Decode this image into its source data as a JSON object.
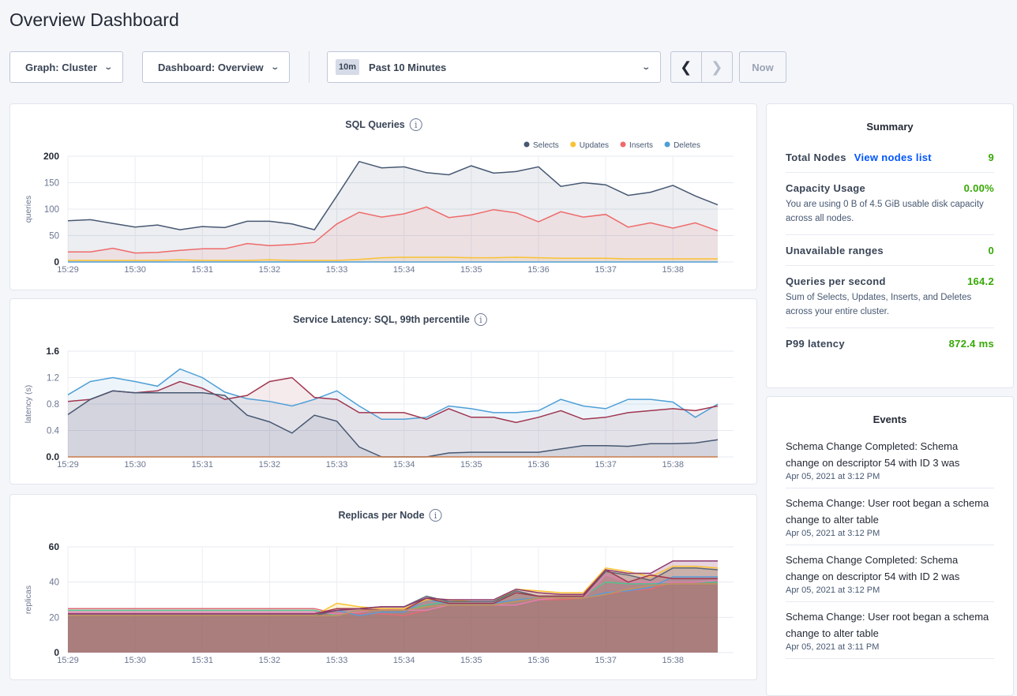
{
  "page": {
    "title": "Overview Dashboard"
  },
  "controls": {
    "graph": "Graph: Cluster",
    "dashboard": "Dashboard: Overview",
    "time_badge": "10m",
    "time_range": "Past 10 Minutes",
    "prev_icon": "chevron-left-icon",
    "next_icon": "chevron-right-icon",
    "now": "Now"
  },
  "summary": {
    "title": "Summary",
    "total_nodes": {
      "label": "Total Nodes",
      "link": "View nodes list",
      "value": "9"
    },
    "capacity": {
      "label": "Capacity Usage",
      "value": "0.00%",
      "desc": "You are using 0 B of 4.5 GiB usable disk capacity across all nodes."
    },
    "unavailable": {
      "label": "Unavailable ranges",
      "value": "0"
    },
    "qps": {
      "label": "Queries per second",
      "value": "164.2",
      "desc": "Sum of Selects, Updates, Inserts, and Deletes across your entire cluster."
    },
    "p99": {
      "label": "P99 latency",
      "value": "872.4 ms"
    },
    "value_color": "#37a806"
  },
  "events": {
    "title": "Events",
    "items": [
      {
        "text": "Schema Change Completed: Schema change on descriptor 54 with ID 3 was",
        "date": "Apr 05, 2021 at 3:12 PM"
      },
      {
        "text": "Schema Change: User root began a schema change to alter table",
        "date": "Apr 05, 2021 at 3:12 PM"
      },
      {
        "text": "Schema Change Completed: Schema change on descriptor 54 with ID 2 was",
        "date": "Apr 05, 2021 at 3:12 PM"
      },
      {
        "text": "Schema Change: User root began a schema change to alter table",
        "date": "Apr 05, 2021 at 3:11 PM"
      }
    ]
  },
  "chart_data": [
    {
      "type": "line",
      "title": "SQL Queries",
      "ylabel": "queries",
      "ylim": [
        0,
        200
      ],
      "yticks": [
        "0",
        "50",
        "100",
        "150",
        "200"
      ],
      "xticks": [
        "15:29",
        "15:30",
        "15:31",
        "15:32",
        "15:33",
        "15:34",
        "15:35",
        "15:36",
        "15:37",
        "15:38"
      ],
      "grid": true,
      "legend": "top-right",
      "area_fill": true,
      "x": [
        "15:29:00",
        "15:29:20",
        "15:29:40",
        "15:30:00",
        "15:30:20",
        "15:30:40",
        "15:31:00",
        "15:31:20",
        "15:31:40",
        "15:32:00",
        "15:32:20",
        "15:32:40",
        "15:33:00",
        "15:33:20",
        "15:33:40",
        "15:34:00",
        "15:34:20",
        "15:34:40",
        "15:35:00",
        "15:35:20",
        "15:35:40",
        "15:36:00",
        "15:36:20",
        "15:36:40",
        "15:37:00",
        "15:37:20",
        "15:37:40",
        "15:38:00",
        "15:38:20",
        "15:38:40"
      ],
      "series": [
        {
          "name": "Selects",
          "color": "#475872",
          "values": [
            78,
            80,
            73,
            66,
            70,
            61,
            67,
            65,
            77,
            77,
            72,
            61,
            125,
            190,
            178,
            180,
            169,
            165,
            182,
            168,
            171,
            180,
            143,
            150,
            146,
            126,
            132,
            145,
            125,
            108
          ]
        },
        {
          "name": "Updates",
          "color": "#f9c233",
          "values": [
            3,
            3,
            3,
            3,
            3,
            4,
            3,
            3,
            3,
            4,
            3,
            3,
            3,
            5,
            8,
            9,
            9,
            9,
            8,
            8,
            9,
            8,
            7,
            7,
            7,
            6,
            6,
            6,
            6,
            6
          ]
        },
        {
          "name": "Inserts",
          "color": "#ef6a6a",
          "values": [
            19,
            19,
            26,
            17,
            18,
            22,
            25,
            25,
            35,
            31,
            33,
            37,
            72,
            94,
            85,
            91,
            104,
            84,
            89,
            99,
            93,
            76,
            95,
            85,
            90,
            66,
            74,
            64,
            74,
            59
          ]
        },
        {
          "name": "Deletes",
          "color": "#4e9fd6",
          "values": [
            0,
            0,
            0,
            0,
            0,
            0,
            0,
            0,
            0,
            0,
            0,
            0,
            0,
            0,
            0,
            0,
            0,
            0,
            0,
            0,
            0,
            0,
            0,
            0,
            0,
            0,
            0,
            0,
            0,
            0
          ]
        }
      ]
    },
    {
      "type": "line",
      "title": "Service Latency: SQL, 99th percentile",
      "ylabel": "latency (s)",
      "ylim": [
        0,
        1.6
      ],
      "yticks": [
        "0.0",
        "0.4",
        "0.8",
        "1.2",
        "1.6"
      ],
      "xticks": [
        "15:29",
        "15:30",
        "15:31",
        "15:32",
        "15:33",
        "15:34",
        "15:35",
        "15:36",
        "15:37",
        "15:38"
      ],
      "grid": true,
      "area_fill": true,
      "x": [
        "15:29:00",
        "15:29:20",
        "15:29:40",
        "15:30:00",
        "15:30:20",
        "15:30:40",
        "15:31:00",
        "15:31:20",
        "15:31:40",
        "15:32:00",
        "15:32:20",
        "15:32:40",
        "15:33:00",
        "15:33:20",
        "15:33:40",
        "15:34:00",
        "15:34:20",
        "15:34:40",
        "15:35:00",
        "15:35:20",
        "15:35:40",
        "15:36:00",
        "15:36:20",
        "15:36:40",
        "15:37:00",
        "15:37:20",
        "15:37:40",
        "15:38:00",
        "15:38:20",
        "15:38:40"
      ],
      "series": [
        {
          "color": "#4e9fd6",
          "values": [
            0.94,
            1.14,
            1.2,
            1.14,
            1.07,
            1.33,
            1.2,
            0.98,
            0.88,
            0.84,
            0.77,
            0.87,
            1.0,
            0.77,
            0.57,
            0.57,
            0.6,
            0.77,
            0.73,
            0.67,
            0.67,
            0.7,
            0.87,
            0.77,
            0.73,
            0.87,
            0.87,
            0.83,
            0.6,
            0.8
          ]
        },
        {
          "color": "#a0364f",
          "values": [
            0.84,
            0.87,
            1.0,
            0.97,
            1.0,
            1.14,
            1.04,
            0.87,
            0.93,
            1.14,
            1.2,
            0.9,
            0.87,
            0.67,
            0.67,
            0.67,
            0.57,
            0.73,
            0.6,
            0.6,
            0.52,
            0.6,
            0.7,
            0.57,
            0.6,
            0.67,
            0.7,
            0.73,
            0.7,
            0.77
          ]
        },
        {
          "color": "#475872",
          "values": [
            0.64,
            0.87,
            1.0,
            0.97,
            0.97,
            0.97,
            0.97,
            0.93,
            0.63,
            0.53,
            0.36,
            0.63,
            0.54,
            0.15,
            0.0,
            0.0,
            0.0,
            0.06,
            0.07,
            0.07,
            0.07,
            0.07,
            0.12,
            0.17,
            0.17,
            0.16,
            0.2,
            0.2,
            0.21,
            0.26
          ]
        },
        {
          "color": "#c97b4a",
          "values": [
            0,
            0,
            0,
            0,
            0,
            0,
            0,
            0,
            0,
            0,
            0,
            0,
            0,
            0,
            0,
            0,
            0,
            0,
            0,
            0,
            0,
            0,
            0,
            0,
            0,
            0,
            0,
            0,
            0,
            0
          ]
        }
      ]
    },
    {
      "type": "area",
      "title": "Replicas per Node",
      "ylabel": "replicas",
      "ylim": [
        0,
        60
      ],
      "yticks": [
        "0",
        "20",
        "40",
        "60"
      ],
      "xticks": [
        "15:29",
        "15:30",
        "15:31",
        "15:32",
        "15:33",
        "15:34",
        "15:35",
        "15:36",
        "15:37",
        "15:38"
      ],
      "grid": true,
      "area_fill": true,
      "x": [
        "15:29:00",
        "15:29:20",
        "15:29:40",
        "15:30:00",
        "15:30:20",
        "15:30:40",
        "15:31:00",
        "15:31:20",
        "15:31:40",
        "15:32:00",
        "15:32:20",
        "15:32:40",
        "15:33:00",
        "15:33:20",
        "15:33:40",
        "15:34:00",
        "15:34:20",
        "15:34:40",
        "15:35:00",
        "15:35:20",
        "15:35:40",
        "15:36:00",
        "15:36:20",
        "15:36:40",
        "15:37:00",
        "15:37:20",
        "15:37:40",
        "15:38:00",
        "15:38:20",
        "15:38:40"
      ],
      "series": [
        {
          "color": "#e06c74",
          "values": [
            25,
            25,
            25,
            25,
            25,
            25,
            25,
            25,
            25,
            25,
            25,
            25,
            22,
            22,
            22,
            21,
            24,
            27,
            27,
            27,
            27,
            30,
            30,
            31,
            33,
            35,
            36,
            40,
            40,
            40
          ]
        },
        {
          "color": "#56c08e",
          "values": [
            24,
            24,
            24,
            24,
            24,
            24,
            24,
            24,
            24,
            24,
            24,
            24,
            21,
            24,
            24,
            24,
            27,
            29,
            29,
            29,
            34,
            32,
            32,
            32,
            40,
            39,
            39,
            40,
            40,
            40
          ]
        },
        {
          "color": "#e37fb1",
          "values": [
            23,
            23,
            23,
            23,
            23,
            23,
            23,
            23,
            23,
            23,
            23,
            23,
            22,
            23,
            25,
            24,
            24,
            27,
            27,
            27,
            27,
            30,
            31,
            31,
            44,
            40,
            40,
            40,
            40,
            41
          ]
        },
        {
          "color": "#5b9bd5",
          "values": [
            22,
            22,
            22,
            22,
            22,
            22,
            22,
            22,
            22,
            22,
            22,
            22,
            24,
            21,
            23,
            23,
            30,
            28,
            28,
            28,
            30,
            31,
            31,
            31,
            34,
            35,
            37,
            43,
            43,
            43
          ]
        },
        {
          "color": "#f9c233",
          "values": [
            21,
            21,
            21,
            21,
            21,
            21,
            21,
            21,
            21,
            21,
            21,
            21,
            28,
            26,
            25,
            25,
            30,
            30,
            29,
            29,
            36,
            35,
            34,
            34,
            48,
            46,
            43,
            49,
            49,
            48
          ]
        },
        {
          "color": "#5e6673",
          "values": [
            21,
            21,
            21,
            21,
            21,
            21,
            21,
            21,
            21,
            21,
            21,
            21,
            24,
            25,
            26,
            26,
            32,
            29,
            29,
            29,
            35,
            32,
            32,
            32,
            46,
            44,
            41,
            48,
            48,
            47
          ]
        },
        {
          "color": "#a0364f",
          "values": [
            22,
            22,
            22,
            22,
            22,
            22,
            22,
            22,
            22,
            22,
            22,
            22,
            25,
            25,
            24,
            24,
            31,
            28,
            28,
            28,
            34,
            32,
            32,
            32,
            47,
            40,
            44,
            42,
            42,
            42
          ]
        },
        {
          "color": "#c1945f",
          "values": [
            21,
            21,
            21,
            21,
            21,
            21,
            21,
            21,
            21,
            21,
            21,
            21,
            21,
            24,
            24,
            24,
            26,
            27,
            27,
            27,
            29,
            31,
            31,
            31,
            33,
            36,
            38,
            39,
            39,
            39
          ]
        },
        {
          "color": "#8e3a6c",
          "values": [
            22,
            22,
            22,
            22,
            22,
            22,
            22,
            22,
            22,
            22,
            22,
            22,
            24,
            25,
            26,
            26,
            31,
            30,
            30,
            30,
            36,
            34,
            33,
            33,
            47,
            45,
            45,
            52,
            52,
            52
          ]
        }
      ]
    }
  ]
}
